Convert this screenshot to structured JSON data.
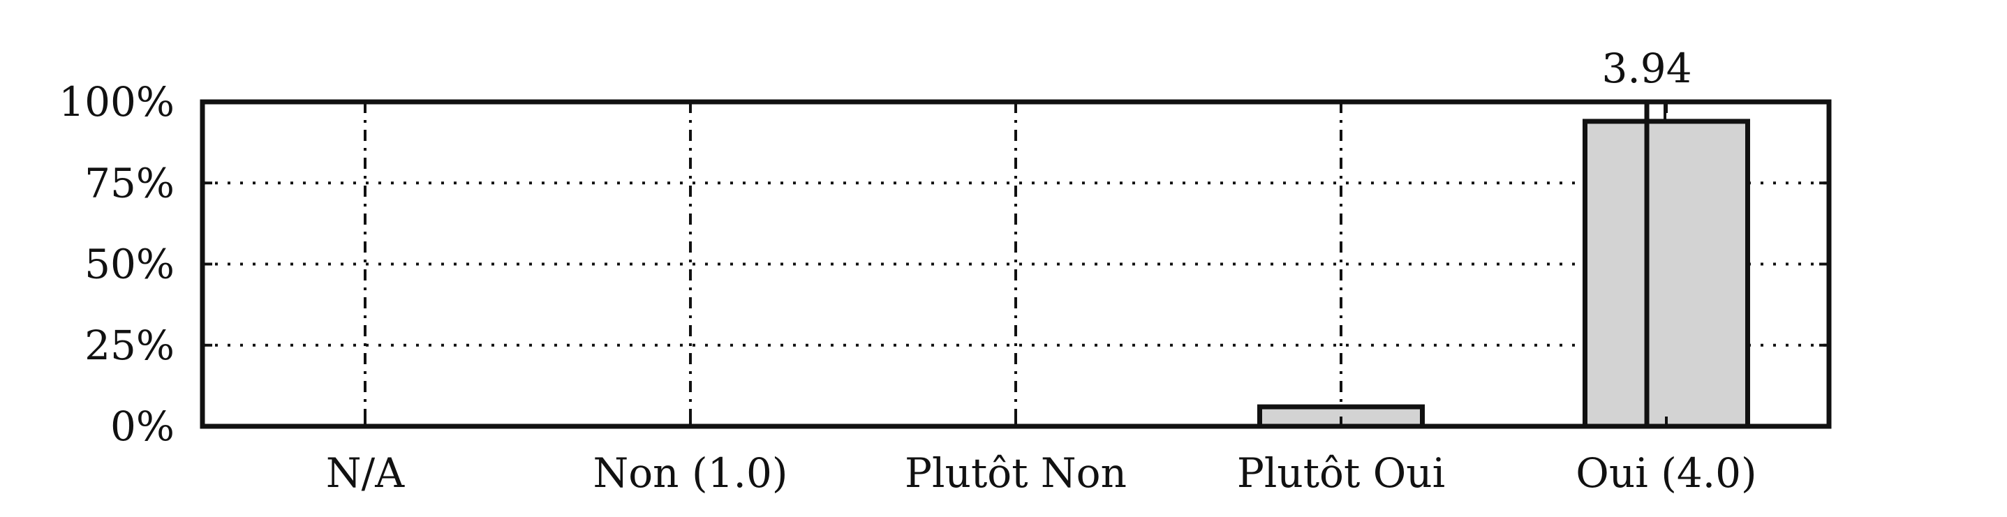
{
  "chart_data": {
    "type": "bar",
    "categories": [
      "N/A",
      "Non (1.0)",
      "Plutôt Non",
      "Plutôt Oui",
      "Oui (4.0)"
    ],
    "values": [
      0,
      0,
      0,
      6,
      94
    ],
    "ylim": [
      0,
      100
    ],
    "yticks": [
      "0%",
      "25%",
      "50%",
      "75%",
      "100%"
    ],
    "ytick_values": [
      0,
      25,
      50,
      75,
      100
    ],
    "grid": true,
    "mean": {
      "label": "3.94",
      "value": 3.94,
      "scale": [
        1.0,
        4.0
      ]
    },
    "colors": {
      "bar": "#d3d3d3",
      "edge": "#111111",
      "grid": "#111111"
    }
  }
}
